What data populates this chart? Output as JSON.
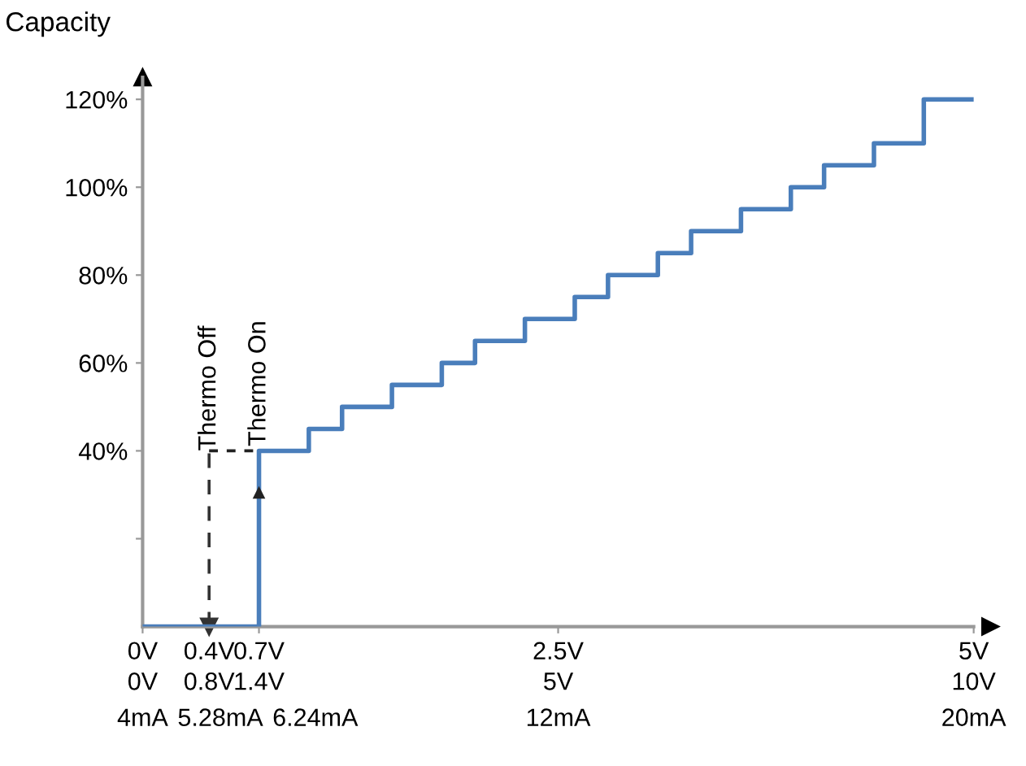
{
  "chart_data": {
    "type": "step",
    "ylabel": "Capacity",
    "x": [
      0,
      0.7,
      1.0,
      1.2,
      1.5,
      1.8,
      2.0,
      2.3,
      2.6,
      2.8,
      3.1,
      3.3,
      3.6,
      3.9,
      4.1,
      4.4,
      4.7,
      5.0
    ],
    "series": [
      {
        "color": "#4a7ebb",
        "values": [
          0,
          40,
          45,
          50,
          55,
          60,
          65,
          70,
          75,
          80,
          85,
          90,
          95,
          100,
          105,
          110,
          120,
          120
        ]
      }
    ],
    "xlim": [
      0,
      5.0
    ],
    "ylim": [
      0,
      125
    ],
    "xticks": [
      {
        "value": 0,
        "label": "0V"
      },
      {
        "value": 0.4,
        "label": "0.4V"
      },
      {
        "value": 0.7,
        "label": "0.7V"
      },
      {
        "value": 2.5,
        "label": "2.5V"
      },
      {
        "value": 5.0,
        "label": "5V"
      }
    ],
    "x2lim": [
      0,
      10
    ],
    "x2ticks": [
      {
        "value": 0,
        "label": "0V"
      },
      {
        "value": 0.8,
        "label": "0.8V"
      },
      {
        "value": 1.4,
        "label": "1.4V"
      },
      {
        "value": 5,
        "label": "5V"
      },
      {
        "value": 10,
        "label": "10V"
      }
    ],
    "yticks": [
      {
        "value": 20,
        "label": null
      },
      {
        "value": 40,
        "label": "40%"
      },
      {
        "value": 60,
        "label": "60%"
      },
      {
        "value": 80,
        "label": "80%"
      },
      {
        "value": 100,
        "label": "100%"
      },
      {
        "value": 120,
        "label": "120%"
      }
    ],
    "ref_lines": [
      {
        "axis": "x",
        "value": 0.4,
        "label": "Thermo Off",
        "line_style": "dashed",
        "color": "#333333"
      }
    ],
    "annotations": [
      {
        "text": "Thermo On",
        "x": 0.7,
        "y": 40
      },
      "4mA",
      "5.28mA",
      "6.24mA",
      "12mA",
      "20mA"
    ],
    "grid": false,
    "legend": false
  }
}
